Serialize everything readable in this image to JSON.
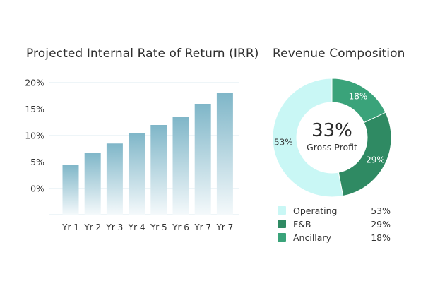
{
  "chart_data": [
    {
      "type": "bar",
      "title": "Projected Internal Rate of Return (IRR)",
      "categories": [
        "Yr 1",
        "Yr 2",
        "Yr 3",
        "Yr 4",
        "Yr 5",
        "Yr 6",
        "Yr 7",
        "Yr 7"
      ],
      "values": [
        4.5,
        6.8,
        8.5,
        10.5,
        12.0,
        13.5,
        16.0,
        18.0
      ],
      "yticks": [
        "20%",
        "15%",
        "10%",
        "5%",
        "0%"
      ],
      "ytick_values": [
        20,
        15,
        10,
        5,
        0
      ],
      "ylim": [
        0,
        20
      ],
      "grid": true,
      "colors": {
        "bar_top": "#7fb6c8",
        "bar_bottom": "#f4f9fb",
        "grid": "#dcebf2"
      }
    },
    {
      "type": "pie",
      "title": "Revenue Composition",
      "center_value": "33%",
      "center_label": "Gross Profit",
      "slices": [
        {
          "name": "Operating",
          "value": 53,
          "label": "53%",
          "color": "#c9f7f5"
        },
        {
          "name": "Ancillary",
          "value": 18,
          "label": "18%",
          "color": "#3aa37a"
        },
        {
          "name": "F&B",
          "value": 29,
          "label": "29%",
          "color": "#2f8a63"
        }
      ],
      "legend": [
        {
          "name": "Operating",
          "value": "53%",
          "color": "#c9f7f5"
        },
        {
          "name": "F&B",
          "value": "29%",
          "color": "#2f8a63"
        },
        {
          "name": "Ancillary",
          "value": "18%",
          "color": "#3aa37a"
        }
      ]
    }
  ]
}
